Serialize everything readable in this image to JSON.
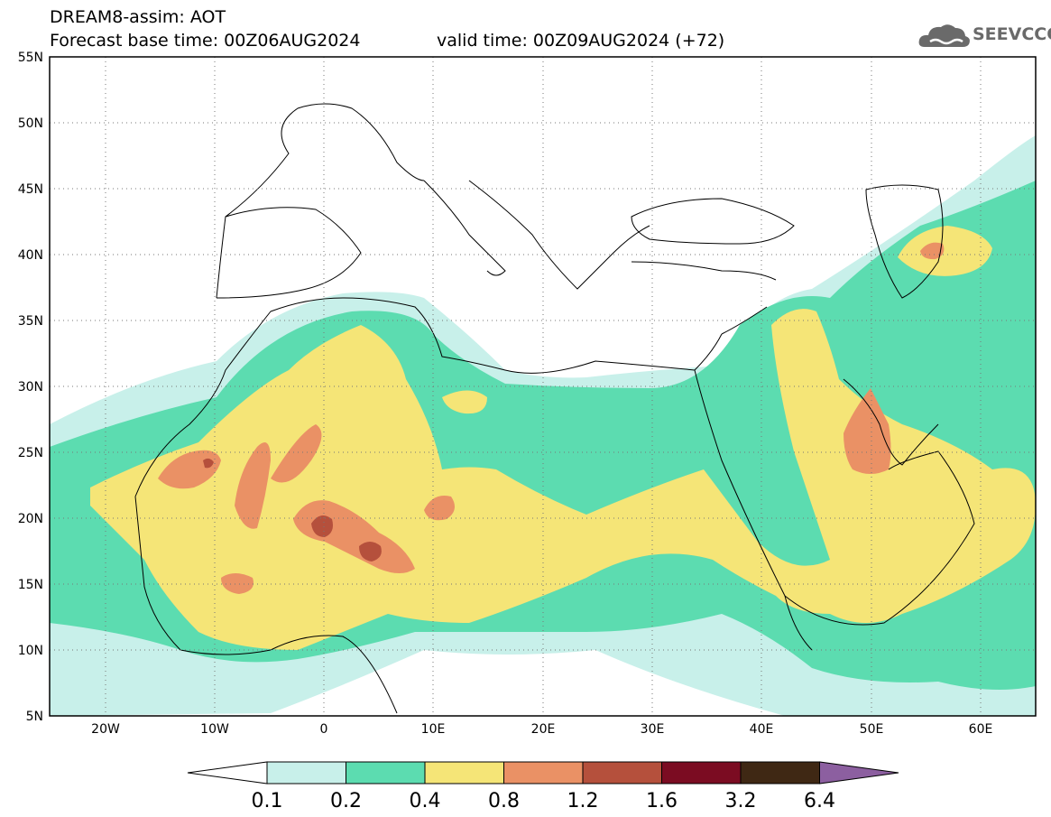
{
  "header": {
    "title": "DREAM8-assim: AOT",
    "forecast_base": "Forecast base time: 00Z06AUG2024",
    "valid_time": "valid time: 00Z09AUG2024 (+72)"
  },
  "logo": {
    "text": "SEEVCCC",
    "icon": "cloud-icon"
  },
  "map": {
    "lat_labels": [
      "55N",
      "50N",
      "45N",
      "40N",
      "35N",
      "30N",
      "25N",
      "20N",
      "15N",
      "10N",
      "5N"
    ],
    "lon_labels": [
      "20W",
      "10W",
      "0",
      "10E",
      "20E",
      "30E",
      "40E",
      "50E",
      "60E"
    ]
  },
  "colorbar": {
    "levels": [
      "0.1",
      "0.2",
      "0.4",
      "0.8",
      "1.2",
      "1.6",
      "3.2",
      "6.4"
    ],
    "colors": [
      "#c8f0ea",
      "#5cdcb0",
      "#f5e577",
      "#ea9165",
      "#b5503c",
      "#7b0c22",
      "#3f2814",
      "#8c5fa0"
    ],
    "under_color": "#ffffff"
  }
}
